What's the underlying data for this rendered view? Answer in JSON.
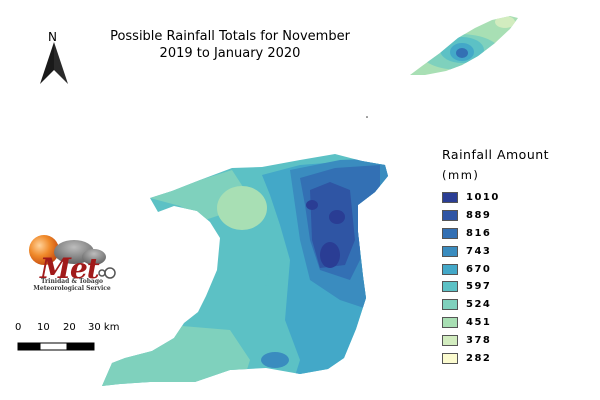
{
  "title": {
    "line1": "Possible Rainfall Totals for November",
    "line2": "2019 to January 2020"
  },
  "north_arrow": {
    "label": "N"
  },
  "legend": {
    "title": "Rainfall Amount",
    "unit": "(mm)",
    "items": [
      {
        "value": "1010",
        "color": "#2a3d94"
      },
      {
        "value": "889",
        "color": "#2f55a4"
      },
      {
        "value": "816",
        "color": "#3370b4"
      },
      {
        "value": "743",
        "color": "#3a8cbf"
      },
      {
        "value": "670",
        "color": "#43a8c8"
      },
      {
        "value": "597",
        "color": "#5cc1c5"
      },
      {
        "value": "524",
        "color": "#7fd1bd"
      },
      {
        "value": "451",
        "color": "#a8dfb4"
      },
      {
        "value": "378",
        "color": "#d2ecbf"
      },
      {
        "value": "282",
        "color": "#fbfbcf"
      }
    ]
  },
  "scale_bar": {
    "labels": [
      "0",
      "10",
      "20",
      "30 km"
    ]
  },
  "logo": {
    "word": "Met",
    "caption": "Trinidad & Tobago Meteorological Service"
  }
}
